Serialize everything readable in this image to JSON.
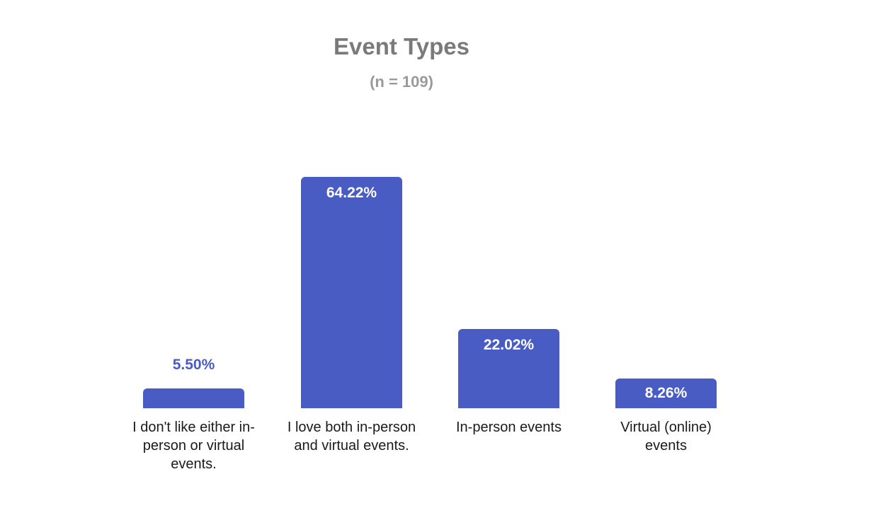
{
  "header": {
    "title": "Event Types",
    "subtitle": "(n = 109)"
  },
  "colors": {
    "bar": "#485CC4",
    "value_label_inside": "#FFFFFF",
    "value_label_outside": "#485CC4",
    "title": "#7A7A7A",
    "subtitle": "#9A9A9A",
    "category_label": "#1A1A1A",
    "background": "#FFFFFF"
  },
  "chart_data": {
    "type": "bar",
    "title": "Event Types",
    "subtitle": "(n = 109)",
    "sample_size": 109,
    "unit": "%",
    "categories": [
      "I don't like either in-person or virtual events.",
      "I love both in-person and virtual events.",
      "In-person events",
      "Virtual (online) events"
    ],
    "category_lines": [
      [
        "I don't like either in-",
        "person or virtual",
        "events."
      ],
      [
        "I love both in-person",
        "and virtual events."
      ],
      [
        "In-person events"
      ],
      [
        "Virtual (online)",
        "events"
      ]
    ],
    "values": [
      5.5,
      64.22,
      22.02,
      8.26
    ],
    "value_labels": [
      "5.50%",
      "64.22%",
      "22.02%",
      "8.26%"
    ],
    "label_positions": [
      "outside",
      "inside-top",
      "inside-top",
      "inside-center"
    ],
    "xlabel": "",
    "ylabel": "",
    "ylim": [
      0,
      70
    ],
    "grid": false,
    "axes_visible": false,
    "legend_position": "none"
  }
}
